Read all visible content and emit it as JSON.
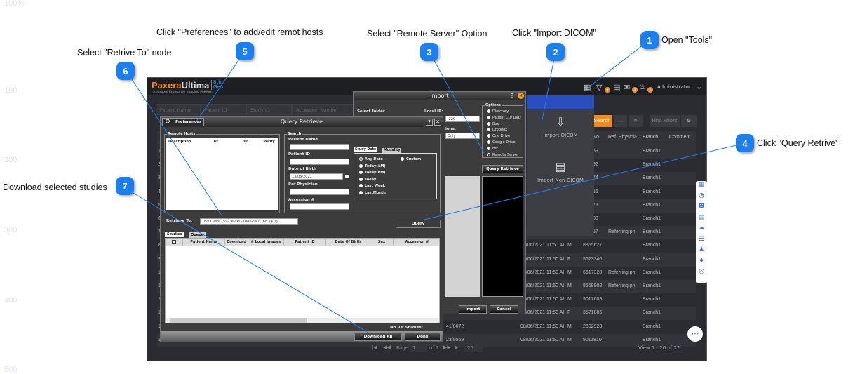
{
  "ruler": [
    "100%",
    "100",
    "200",
    "300",
    "400",
    "500"
  ],
  "annotations": [
    {
      "n": "1",
      "text": "Open \"Tools\""
    },
    {
      "n": "2",
      "text": "Click \"Import DICOM\""
    },
    {
      "n": "3",
      "text": "Select \"Remote Server\" Option"
    },
    {
      "n": "4",
      "text": "Click \"Query Retrive\""
    },
    {
      "n": "5",
      "text": "Click \"Preferences\" to add/edit remot hosts"
    },
    {
      "n": "6",
      "text": "Select \"Retrive To\" node"
    },
    {
      "n": "7",
      "text": "Download selected studies"
    }
  ],
  "app": {
    "logo": {
      "brand1": "Paxera",
      "brand2": "Ultima",
      "gen1": "8th",
      "gen2": "Gen",
      "tagline": "Integrated Enterprise Imaging Platform"
    },
    "header": {
      "user": "Administrator",
      "badges": {
        "filter": "5",
        "mail": "3",
        "bell": "1"
      }
    },
    "search_fields": [
      "Patient Name",
      "Patient ID",
      "Study ID",
      "Accession Number"
    ],
    "buttons": {
      "search": "Search",
      "more": "...",
      "find_priors": "Find Priors"
    },
    "columns": [
      "No",
      "Ref. Physicia",
      "Branch",
      "Comment"
    ],
    "rows": [
      {
        "n": "1",
        "date": "",
        "sex": "",
        "no": "59",
        "ref": "",
        "branch": "Branch1"
      },
      {
        "n": "2",
        "date": "",
        "sex": "",
        "no": "92",
        "ref": "",
        "branch": "Branch1"
      },
      {
        "n": "3",
        "date": "",
        "sex": "",
        "no": "74",
        "ref": "",
        "branch": "Branch1"
      },
      {
        "n": "4",
        "date": "",
        "sex": "",
        "no": "56",
        "ref": "",
        "branch": "Branch1"
      },
      {
        "n": "5",
        "date": "",
        "sex": "",
        "no": "73",
        "ref": "",
        "branch": "Branch1"
      },
      {
        "n": "6",
        "date": "",
        "sex": "",
        "no": "00",
        "ref": "",
        "branch": "Branch1"
      },
      {
        "n": "7",
        "date": "",
        "sex": "",
        "no": "57",
        "ref": "Referring ph",
        "branch": "Branch1"
      },
      {
        "n": "8",
        "date": "08/06/2021 11:50 AI",
        "sex": "M",
        "no": "8865627",
        "ref": "",
        "branch": "Branch1"
      },
      {
        "n": "9",
        "date": "08/06/2021 11:50 AI",
        "sex": "F",
        "no": "5623340",
        "ref": "",
        "branch": "Branch1"
      },
      {
        "n": "10",
        "date": "08/06/2021 11:50 AI",
        "sex": "M",
        "no": "6617328",
        "ref": "Referring ph",
        "branch": "Branch1"
      },
      {
        "n": "11",
        "date": "08/06/2021 11:50 AI",
        "sex": "M",
        "no": "8569902",
        "ref": "Referring ph",
        "branch": "Branch1"
      },
      {
        "n": "12",
        "date": "08/06/2021 11:50 AI",
        "sex": "M",
        "no": "9017609",
        "ref": "",
        "branch": "Branch1"
      },
      {
        "n": "13",
        "date": "08/06/2021 11:50 AI",
        "sex": "F",
        "no": "3571886",
        "ref": "",
        "branch": "Branch1"
      },
      {
        "n": "14",
        "acc": "41/8072",
        "date": "08/06/2021 11:50 AI",
        "sex": "M",
        "no": "2602923",
        "ref": "",
        "branch": "Branch1"
      },
      {
        "n": "15",
        "acc": "23/9569",
        "date": "08/06/2021 11:50 AI",
        "sex": "M",
        "no": "9011810",
        "ref": "",
        "branch": "Branch1"
      }
    ],
    "pager": {
      "page_label": "Page",
      "page": "1",
      "of": "of 2",
      "size": "20",
      "view": "View 1 - 20 of 22"
    },
    "tools_menu": {
      "import_dicom": "Import DICOM",
      "import_non_dicom": "Import Non-DICOM"
    },
    "accent": "#f08a1c"
  },
  "import_dialog": {
    "title": "Import",
    "select_folder": "Select folder",
    "local_ip": "Local IP:",
    "ip_value": ".229",
    "options_label": "ions:",
    "options_value": "Only",
    "options_title": "Options",
    "options": [
      "Directory",
      "Patient CD/ DVD",
      "Box",
      "Dropbox",
      "One Drive",
      "Google Drive",
      "HIE",
      "Remote Server"
    ],
    "selected_option": "Remote Server",
    "query_retrieve": "Query Retrieve",
    "import": "Import",
    "cancel": "Cancel"
  },
  "qr_dialog": {
    "title": "Query Retrieve",
    "preferences": "Preferences",
    "remote_hosts": {
      "title": "Remote Hosts",
      "columns": [
        "Description",
        "AE",
        "IP",
        "Verify"
      ]
    },
    "search": {
      "title": "Search",
      "patient_name": "Patient Name",
      "patient_id": "Patient ID",
      "dob": "Date of Birth",
      "dob_value": "13/06/2021",
      "ref_physician": "Ref Physician",
      "accession": "Accession #"
    },
    "tabs": [
      "Study Date",
      "Modality"
    ],
    "date_options": [
      "Any Date",
      "Today(AM)",
      "Today(PM)",
      "Today",
      "Last Week",
      "LastMonth",
      "Custom"
    ],
    "retrieve_to_label": "Retrieve To:",
    "retrieve_to_value": "This Client (SV-Dev-PC-1086-192.168.24.1)",
    "query": "Query",
    "result_tabs": [
      "Studies",
      "Queue"
    ],
    "result_columns": [
      "Patient Name",
      "Download",
      "# Local Images",
      "Patient ID",
      "Date Of Birth",
      "Sex",
      "Accession #"
    ],
    "no_of_studies": "No. Of Studies:",
    "download_all": "Download All",
    "done": "Done"
  }
}
